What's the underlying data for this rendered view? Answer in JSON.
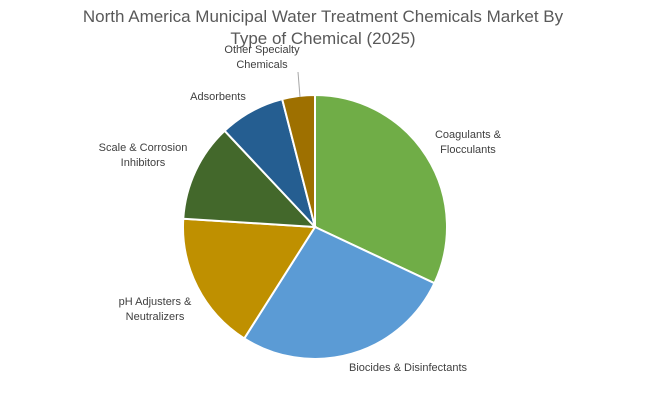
{
  "chart_data": {
    "type": "pie",
    "title": "North America Municipal Water Treatment Chemicals Market By Type of Chemical (2025)",
    "categories": [
      "Coagulants & Flocculants",
      "Biocides & Disinfectants",
      "pH Adjusters & Neutralizers",
      "Scale & Corrosion Inhibitors",
      "Adsorbents",
      "Other Specialty Chemicals"
    ],
    "values": [
      32,
      27,
      17,
      12,
      8,
      4
    ],
    "colors": [
      "#70ad47",
      "#5b9bd5",
      "#bf9000",
      "#43682b",
      "#255e91",
      "#9e7000"
    ]
  }
}
